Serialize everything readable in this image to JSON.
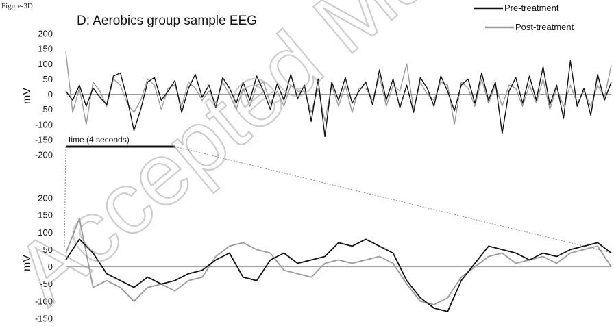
{
  "figure_label": "Figure-3D",
  "watermark_text": "Accepted Ma",
  "chart_data": [
    {
      "type": "line",
      "title": "D: Aerobics group sample EEG",
      "ylabel": "mV",
      "yticks": [
        200,
        150,
        100,
        50,
        0,
        -50,
        -100,
        -150,
        -200
      ],
      "ylim": [
        -200,
        200
      ],
      "xlim": [
        0,
        20
      ],
      "xunit": "seconds",
      "annotation": "time (4 seconds)",
      "bracket_seconds": [
        0,
        4
      ],
      "baseline_y": 0,
      "legend": {
        "position": "top-right",
        "entries": [
          "Pre-treatment",
          "Post-treatment"
        ]
      },
      "series": [
        {
          "name": "Pre-treatment",
          "color": "#111111",
          "x": [
            0,
            0.25,
            0.5,
            0.75,
            1,
            1.25,
            1.5,
            1.75,
            2,
            2.25,
            2.5,
            2.75,
            3,
            3.25,
            3.5,
            3.75,
            4,
            4.25,
            4.5,
            4.75,
            5,
            5.25,
            5.5,
            5.75,
            6,
            6.25,
            6.5,
            6.75,
            7,
            7.25,
            7.5,
            7.75,
            8,
            8.25,
            8.5,
            8.75,
            9,
            9.25,
            9.5,
            9.75,
            10,
            10.25,
            10.5,
            10.75,
            11,
            11.25,
            11.5,
            11.75,
            12,
            12.25,
            12.5,
            12.75,
            13,
            13.25,
            13.5,
            13.75,
            14,
            14.25,
            14.5,
            14.75,
            15,
            15.25,
            15.5,
            15.75,
            16,
            16.25,
            16.5,
            16.75,
            17,
            17.25,
            17.5,
            17.75,
            18,
            18.25,
            18.5,
            18.75,
            19,
            19.25,
            19.5,
            19.75,
            20
          ],
          "y": [
            10,
            -20,
            30,
            -40,
            20,
            -10,
            -35,
            60,
            70,
            -15,
            -120,
            -50,
            40,
            55,
            -20,
            10,
            45,
            -60,
            20,
            65,
            -10,
            30,
            -45,
            55,
            20,
            -30,
            40,
            -20,
            60,
            10,
            -50,
            35,
            -20,
            65,
            -15,
            30,
            -90,
            50,
            -140,
            40,
            -20,
            55,
            -30,
            10,
            40,
            -35,
            80,
            -20,
            50,
            -45,
            30,
            -60,
            55,
            20,
            -40,
            60,
            10,
            -55,
            30,
            50,
            -30,
            70,
            -20,
            40,
            -130,
            10,
            55,
            -30,
            60,
            -20,
            90,
            -35,
            30,
            -80,
            110,
            -40,
            20,
            -70,
            65,
            -20,
            40
          ]
        },
        {
          "name": "Post-treatment",
          "color": "#9a9a9a",
          "x": [
            0,
            0.25,
            0.5,
            0.75,
            1,
            1.25,
            1.5,
            1.75,
            2,
            2.25,
            2.5,
            2.75,
            3,
            3.25,
            3.5,
            3.75,
            4,
            4.25,
            4.5,
            4.75,
            5,
            5.25,
            5.5,
            5.75,
            6,
            6.25,
            6.5,
            6.75,
            7,
            7.25,
            7.5,
            7.75,
            8,
            8.25,
            8.5,
            8.75,
            9,
            9.25,
            9.5,
            9.75,
            10,
            10.25,
            10.5,
            10.75,
            11,
            11.25,
            11.5,
            11.75,
            12,
            12.25,
            12.5,
            12.75,
            13,
            13.25,
            13.5,
            13.75,
            14,
            14.25,
            14.5,
            14.75,
            15,
            15.25,
            15.5,
            15.75,
            16,
            16.25,
            16.5,
            16.75,
            17,
            17.25,
            17.5,
            17.75,
            18,
            18.25,
            18.5,
            18.75,
            19,
            19.25,
            19.5,
            19.75,
            20
          ],
          "y": [
            140,
            -60,
            20,
            -100,
            40,
            10,
            -40,
            50,
            30,
            -30,
            -60,
            -20,
            50,
            30,
            -50,
            20,
            30,
            -40,
            40,
            20,
            -20,
            10,
            -30,
            40,
            0,
            -50,
            20,
            -40,
            30,
            40,
            -30,
            10,
            -40,
            30,
            10,
            10,
            -60,
            20,
            -90,
            30,
            -40,
            30,
            -60,
            20,
            20,
            -20,
            60,
            -40,
            30,
            10,
            100,
            -50,
            40,
            0,
            -20,
            40,
            30,
            -100,
            40,
            20,
            -40,
            50,
            -30,
            30,
            -40,
            30,
            20,
            -40,
            30,
            -30,
            50,
            -50,
            20,
            -40,
            30,
            -30,
            10,
            -40,
            30,
            -10,
            95
          ]
        }
      ]
    },
    {
      "type": "line",
      "ylabel": "mV",
      "yticks": [
        200,
        150,
        100,
        50,
        0,
        -50,
        -100,
        -150
      ],
      "ylim": [
        -150,
        200
      ],
      "xlim": [
        0,
        4
      ],
      "xunit": "seconds",
      "baseline_y": 0,
      "series": [
        {
          "name": "Pre-treatment",
          "color": "#111111",
          "x": [
            0,
            0.1,
            0.2,
            0.3,
            0.4,
            0.5,
            0.6,
            0.7,
            0.8,
            0.9,
            1,
            1.1,
            1.2,
            1.3,
            1.4,
            1.5,
            1.6,
            1.7,
            1.8,
            1.9,
            2,
            2.1,
            2.2,
            2.3,
            2.4,
            2.5,
            2.6,
            2.7,
            2.8,
            2.9,
            3,
            3.1,
            3.2,
            3.3,
            3.4,
            3.5,
            3.6,
            3.7,
            3.8,
            3.9,
            4
          ],
          "y": [
            20,
            80,
            40,
            -20,
            -40,
            -60,
            -30,
            -50,
            -40,
            -20,
            -10,
            20,
            40,
            -30,
            -40,
            20,
            40,
            10,
            20,
            30,
            70,
            60,
            80,
            60,
            40,
            -40,
            -90,
            -120,
            -130,
            -40,
            10,
            60,
            50,
            40,
            20,
            40,
            30,
            50,
            60,
            70,
            40
          ]
        },
        {
          "name": "Post-treatment",
          "color": "#9a9a9a",
          "x": [
            0,
            0.1,
            0.2,
            0.3,
            0.4,
            0.5,
            0.6,
            0.7,
            0.8,
            0.9,
            1,
            1.1,
            1.2,
            1.3,
            1.4,
            1.5,
            1.6,
            1.7,
            1.8,
            1.9,
            2,
            2.1,
            2.2,
            2.3,
            2.4,
            2.5,
            2.6,
            2.7,
            2.8,
            2.9,
            3,
            3.1,
            3.2,
            3.3,
            3.4,
            3.5,
            3.6,
            3.7,
            3.8,
            3.9,
            4
          ],
          "y": [
            40,
            140,
            -60,
            -40,
            -60,
            -100,
            -60,
            -50,
            -70,
            -40,
            -30,
            30,
            60,
            70,
            50,
            40,
            -10,
            -20,
            -30,
            10,
            20,
            10,
            20,
            30,
            10,
            -50,
            -100,
            -110,
            -90,
            -30,
            0,
            30,
            40,
            10,
            20,
            30,
            10,
            40,
            50,
            60,
            0
          ]
        }
      ]
    }
  ]
}
